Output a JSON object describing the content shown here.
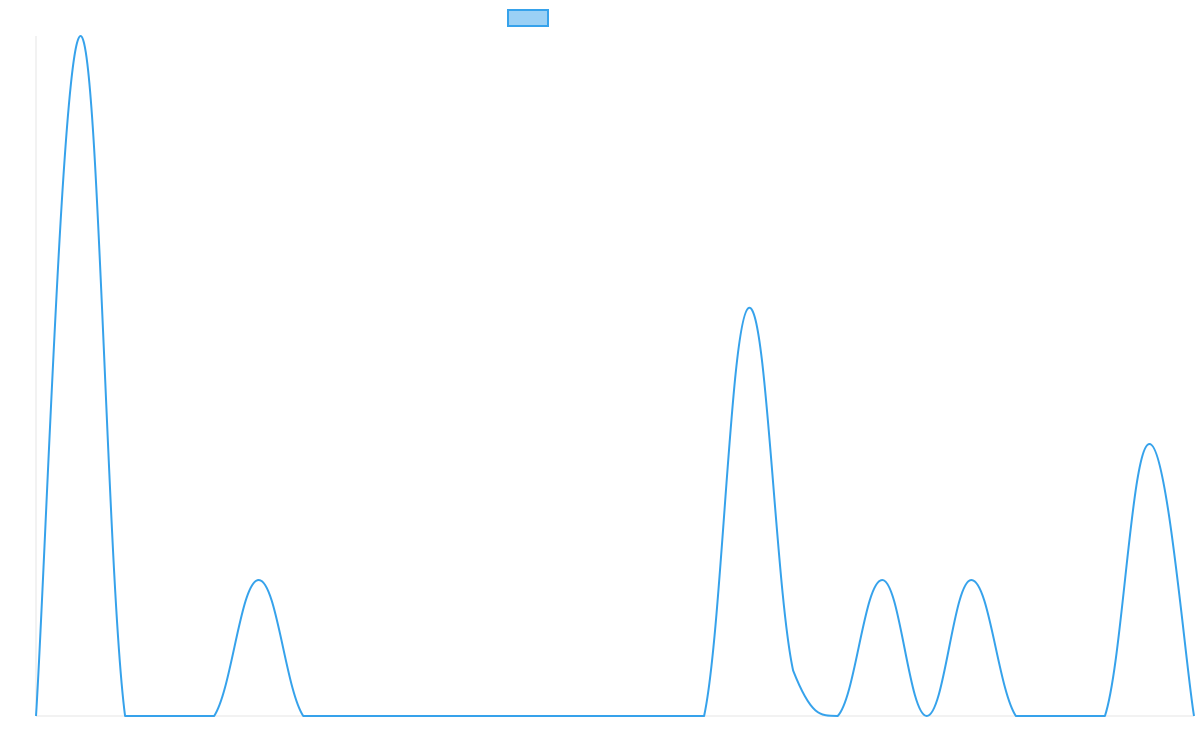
{
  "chart_data": {
    "type": "line",
    "title": "",
    "xlabel": "",
    "ylabel": "",
    "x": [
      0,
      1,
      2,
      3,
      4,
      5,
      6,
      7,
      8,
      9,
      10,
      11,
      12,
      13,
      14,
      15,
      16,
      17,
      18,
      19,
      20,
      21,
      22,
      23,
      24,
      25,
      26
    ],
    "series": [
      {
        "label": "",
        "values": [
          0,
          15,
          0,
          0,
          0,
          3,
          0,
          0,
          0,
          0,
          0,
          0,
          0,
          0,
          0,
          0,
          9,
          1,
          0,
          3,
          0,
          3,
          0,
          0,
          0,
          6,
          0
        ]
      }
    ],
    "ylim": [
      0,
      15
    ],
    "grid": false,
    "legend": "top-center",
    "curve": "smooth",
    "colors": {
      "line": "#36a2eb",
      "legend_fill": "#9ad0f5",
      "axis": "#e5e5e5"
    }
  }
}
